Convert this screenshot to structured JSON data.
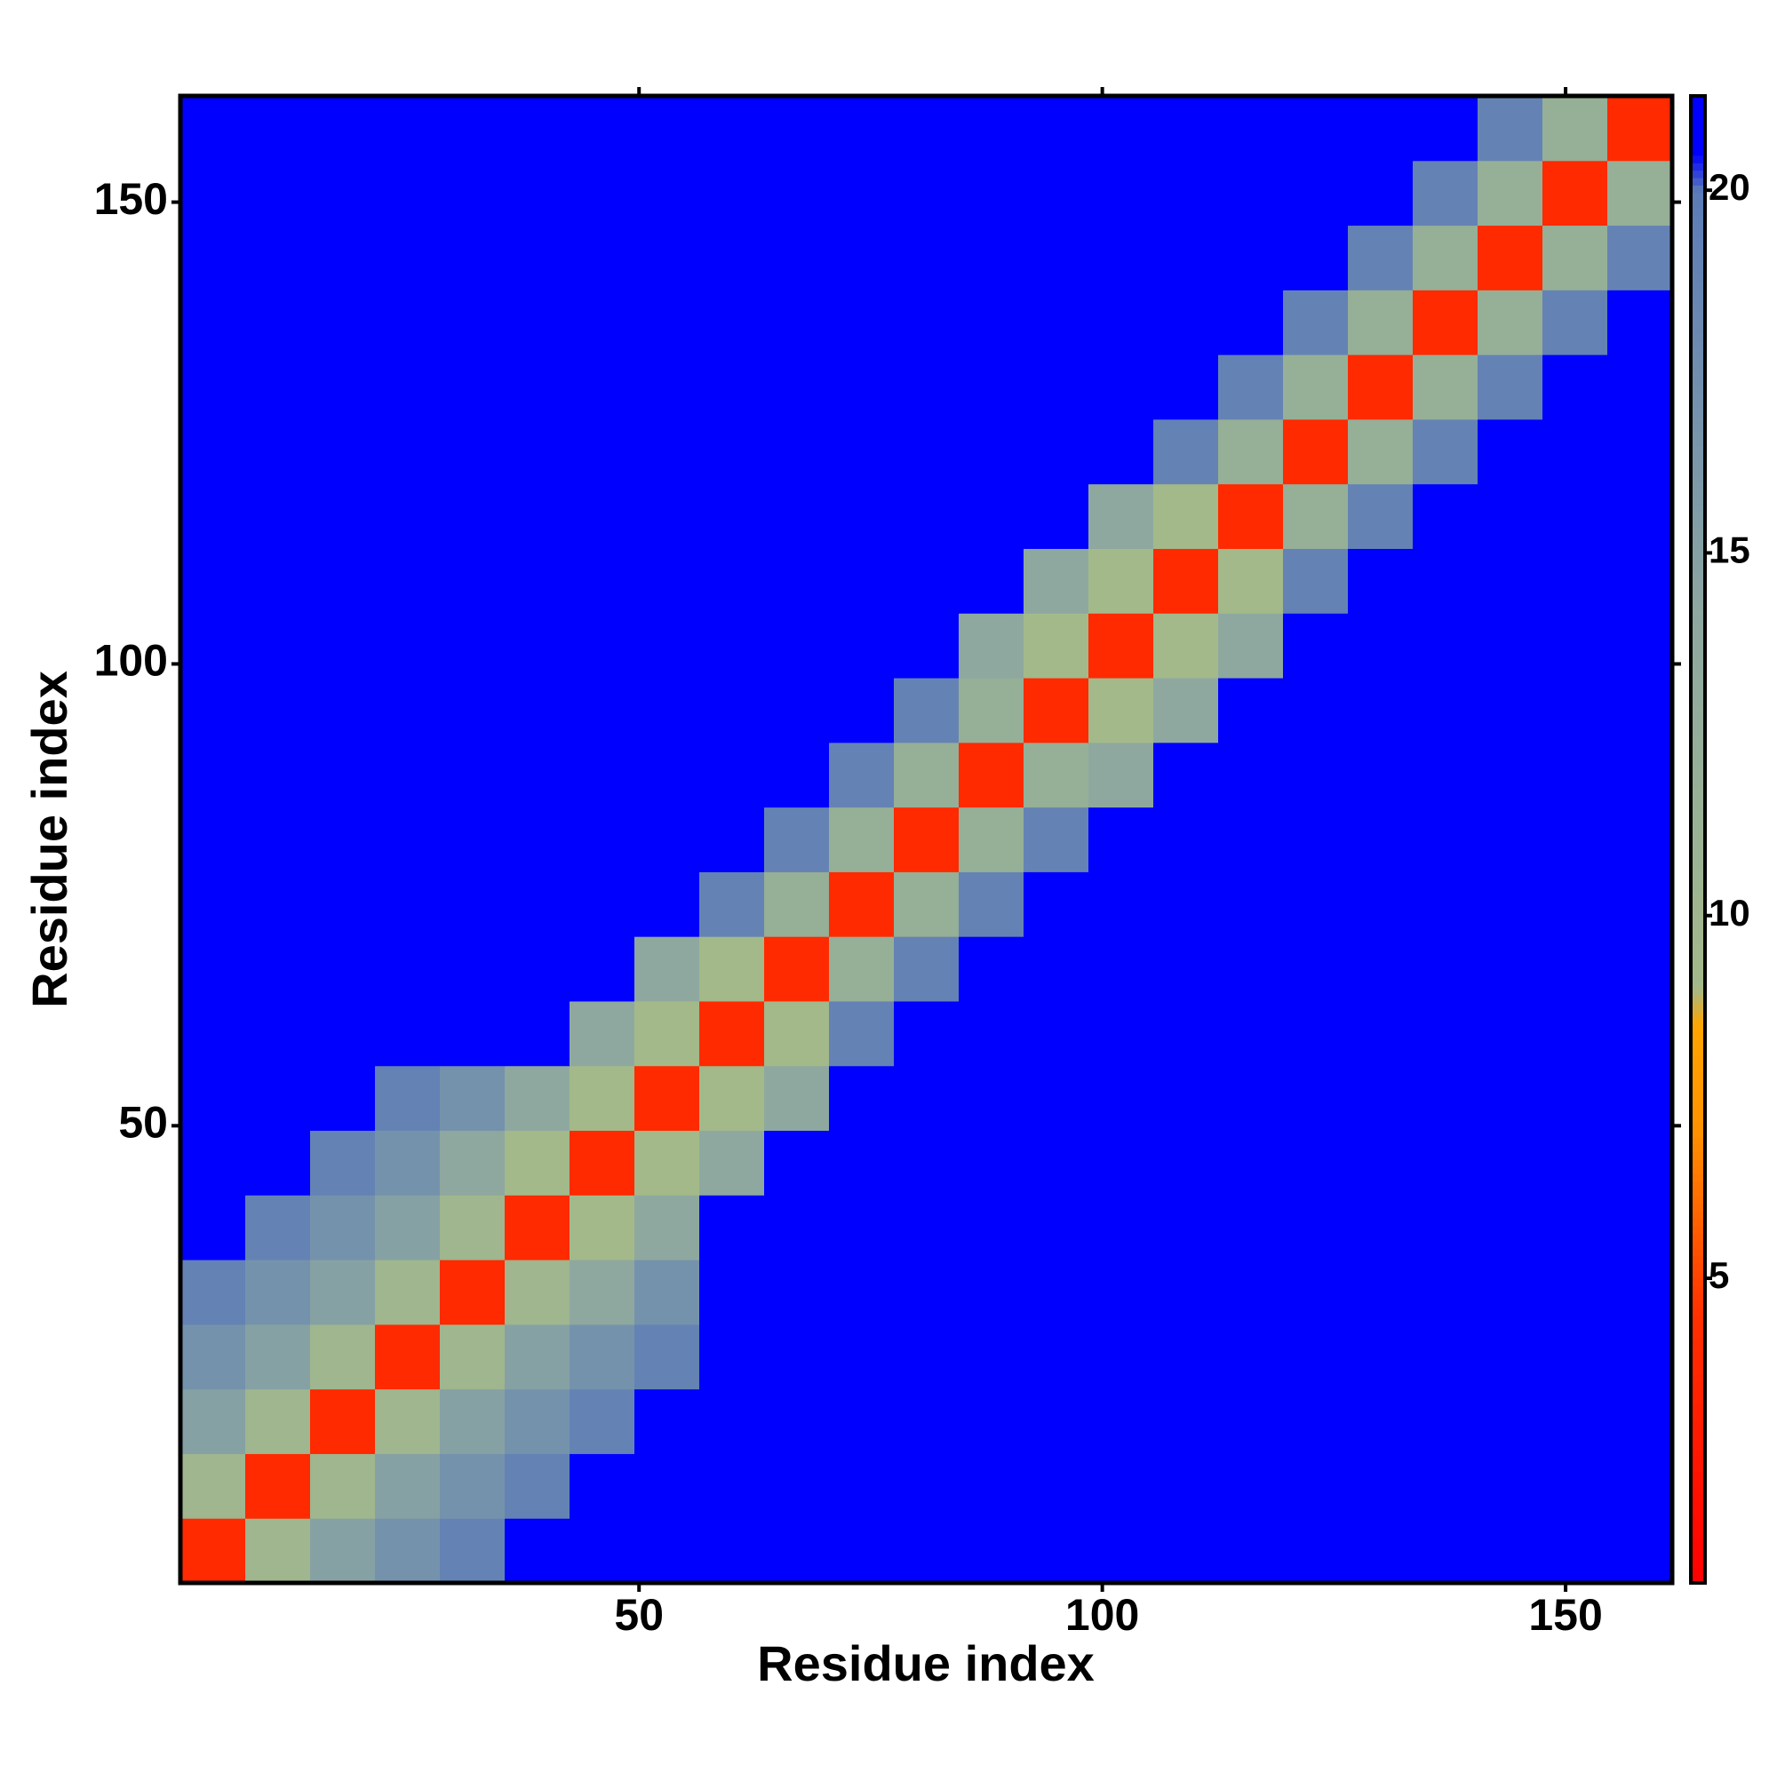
{
  "chart_data": {
    "type": "heatmap",
    "xlabel": "Residue index",
    "ylabel": "Residue index",
    "x": [
      4,
      11,
      18,
      25,
      32,
      39,
      46,
      53,
      60,
      67,
      74,
      81,
      88,
      95,
      102,
      109,
      116,
      123,
      130,
      137,
      144,
      151,
      158
    ],
    "y": [
      4,
      11,
      18,
      25,
      32,
      39,
      46,
      53,
      60,
      67,
      74,
      81,
      88,
      95,
      102,
      109,
      116,
      123,
      130,
      137,
      144,
      151,
      158
    ],
    "z": [
      [
        4,
        10,
        15,
        17,
        19,
        21,
        21,
        21,
        21,
        21,
        21,
        21,
        21,
        21,
        21,
        21,
        21,
        21,
        21,
        21,
        21,
        21,
        21
      ],
      [
        10,
        4,
        10,
        15,
        17,
        19,
        21,
        21,
        21,
        21,
        21,
        21,
        21,
        21,
        21,
        21,
        21,
        21,
        21,
        21,
        21,
        21,
        21
      ],
      [
        15,
        10,
        4,
        10,
        15,
        17,
        19,
        21,
        21,
        21,
        21,
        21,
        21,
        21,
        21,
        21,
        21,
        21,
        21,
        21,
        21,
        21,
        21
      ],
      [
        17,
        15,
        10,
        4,
        10,
        15,
        17,
        19,
        21,
        21,
        21,
        21,
        21,
        21,
        21,
        21,
        21,
        21,
        21,
        21,
        21,
        21,
        21
      ],
      [
        19,
        17,
        15,
        10,
        4,
        10,
        14,
        17,
        21,
        21,
        21,
        21,
        21,
        21,
        21,
        21,
        21,
        21,
        21,
        21,
        21,
        21,
        21
      ],
      [
        21,
        19,
        17,
        15,
        10,
        4,
        9,
        14,
        21,
        21,
        21,
        21,
        21,
        21,
        21,
        21,
        21,
        21,
        21,
        21,
        21,
        21,
        21
      ],
      [
        21,
        21,
        19,
        17,
        14,
        9,
        4,
        9,
        14,
        21,
        21,
        21,
        21,
        21,
        21,
        21,
        21,
        21,
        21,
        21,
        21,
        21,
        21
      ],
      [
        21,
        21,
        21,
        19,
        17,
        14,
        9,
        4,
        9,
        14,
        21,
        21,
        21,
        21,
        21,
        21,
        21,
        21,
        21,
        21,
        21,
        21,
        21
      ],
      [
        21,
        21,
        21,
        21,
        21,
        21,
        14,
        9,
        4,
        9,
        19,
        21,
        21,
        21,
        21,
        21,
        21,
        21,
        21,
        21,
        21,
        21,
        21
      ],
      [
        21,
        21,
        21,
        21,
        21,
        21,
        21,
        14,
        9,
        4,
        12,
        19,
        21,
        21,
        21,
        21,
        21,
        21,
        21,
        21,
        21,
        21,
        21
      ],
      [
        21,
        21,
        21,
        21,
        21,
        21,
        21,
        21,
        19,
        12,
        4,
        12,
        19,
        21,
        21,
        21,
        21,
        21,
        21,
        21,
        21,
        21,
        21
      ],
      [
        21,
        21,
        21,
        21,
        21,
        21,
        21,
        21,
        21,
        19,
        12,
        4,
        12,
        19,
        21,
        21,
        21,
        21,
        21,
        21,
        21,
        21,
        21
      ],
      [
        21,
        21,
        21,
        21,
        21,
        21,
        21,
        21,
        21,
        21,
        19,
        12,
        4,
        12,
        14,
        21,
        21,
        21,
        21,
        21,
        21,
        21,
        21
      ],
      [
        21,
        21,
        21,
        21,
        21,
        21,
        21,
        21,
        21,
        21,
        21,
        19,
        12,
        4,
        9,
        14,
        21,
        21,
        21,
        21,
        21,
        21,
        21
      ],
      [
        21,
        21,
        21,
        21,
        21,
        21,
        21,
        21,
        21,
        21,
        21,
        21,
        14,
        9,
        4,
        9,
        14,
        21,
        21,
        21,
        21,
        21,
        21
      ],
      [
        21,
        21,
        21,
        21,
        21,
        21,
        21,
        21,
        21,
        21,
        21,
        21,
        21,
        14,
        9,
        4,
        9,
        19,
        21,
        21,
        21,
        21,
        21
      ],
      [
        21,
        21,
        21,
        21,
        21,
        21,
        21,
        21,
        21,
        21,
        21,
        21,
        21,
        21,
        14,
        9,
        4,
        12,
        19,
        21,
        21,
        21,
        21
      ],
      [
        21,
        21,
        21,
        21,
        21,
        21,
        21,
        21,
        21,
        21,
        21,
        21,
        21,
        21,
        21,
        19,
        12,
        4,
        12,
        19,
        21,
        21,
        21
      ],
      [
        21,
        21,
        21,
        21,
        21,
        21,
        21,
        21,
        21,
        21,
        21,
        21,
        21,
        21,
        21,
        21,
        19,
        12,
        4,
        12,
        19,
        21,
        21
      ],
      [
        21,
        21,
        21,
        21,
        21,
        21,
        21,
        21,
        21,
        21,
        21,
        21,
        21,
        21,
        21,
        21,
        21,
        19,
        12,
        4,
        12,
        19,
        21
      ],
      [
        21,
        21,
        21,
        21,
        21,
        21,
        21,
        21,
        21,
        21,
        21,
        21,
        21,
        21,
        21,
        21,
        21,
        21,
        19,
        12,
        4,
        12,
        19
      ],
      [
        21,
        21,
        21,
        21,
        21,
        21,
        21,
        21,
        21,
        21,
        21,
        21,
        21,
        21,
        21,
        21,
        21,
        21,
        21,
        19,
        12,
        4,
        12
      ],
      [
        21,
        21,
        21,
        21,
        21,
        21,
        21,
        21,
        21,
        21,
        21,
        21,
        21,
        21,
        21,
        21,
        21,
        21,
        21,
        21,
        19,
        12,
        4
      ]
    ],
    "xlim": [
      0.5,
      161.5
    ],
    "ylim": [
      0.5,
      161.5
    ],
    "xticks": [
      50,
      100,
      150
    ],
    "yticks": [
      50,
      100,
      150
    ],
    "zlim": [
      0.8,
      21.3
    ],
    "zticks": [
      5,
      10,
      15,
      20
    ],
    "colorscale": [
      [
        0.8,
        "#ff0000"
      ],
      [
        4.5,
        "#ff3000"
      ],
      [
        7,
        "#ff9000"
      ],
      [
        8.5,
        "#ffa500"
      ],
      [
        9,
        "#a3b98a"
      ],
      [
        14,
        "#8ea8a0"
      ],
      [
        20,
        "#5b7bb8"
      ],
      [
        20.5,
        "#0000ff"
      ],
      [
        21.3,
        "#0000ff"
      ]
    ]
  }
}
